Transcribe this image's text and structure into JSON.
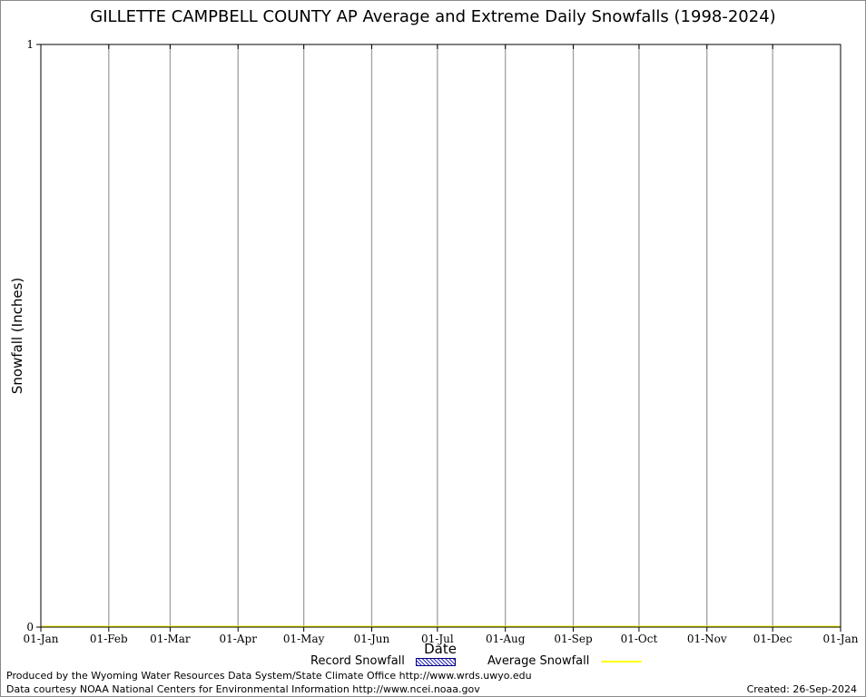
{
  "chart_data": {
    "type": "bar",
    "title": "GILLETTE CAMPBELL COUNTY AP Average and Extreme Daily Snowfalls (1998-2024)",
    "xlabel": "Date",
    "ylabel": "Snowfall (Inches)",
    "ylim": [
      0,
      1
    ],
    "y_ticks": [
      "0",
      "1"
    ],
    "x_ticks": [
      "01-Jan",
      "01-Feb",
      "01-Mar",
      "01-Apr",
      "01-May",
      "01-Jun",
      "01-Jul",
      "01-Aug",
      "01-Sep",
      "01-Oct",
      "01-Nov",
      "01-Dec",
      "01-Jan"
    ],
    "x_tick_day_of_year": [
      1,
      32,
      60,
      91,
      121,
      152,
      182,
      213,
      244,
      274,
      305,
      335,
      366
    ],
    "grid": "vertical",
    "series": [
      {
        "name": "Record Snowfall",
        "kind": "bar",
        "color": "#2a2ab8",
        "values": []
      },
      {
        "name": "Average Snowfall",
        "kind": "line",
        "color": "#ffff00",
        "values": [
          0,
          0
        ]
      }
    ],
    "legend": {
      "placement": "bottom",
      "items": [
        "Record Snowfall",
        "Average Snowfall"
      ]
    }
  },
  "footer": {
    "produced_by": "Produced by the Wyoming Water Resources Data System/State Climate Office http://www.wrds.uwyo.edu",
    "data_courtesy": "Data courtesy NOAA National Centers for Environmental Information http://www.ncei.noaa.gov",
    "created": "Created: 26-Sep-2024"
  }
}
